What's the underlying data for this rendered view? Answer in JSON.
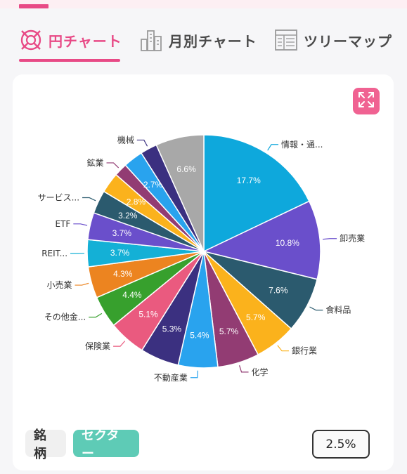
{
  "tabs": [
    {
      "label": "円チャート",
      "icon": "pie-target-icon",
      "active": true
    },
    {
      "label": "月別チャート",
      "icon": "buildings-icon",
      "active": false
    },
    {
      "label": "ツリーマップ",
      "icon": "treemap-grid-icon",
      "active": false
    }
  ],
  "colors": {
    "accent": "#e84a86",
    "toggle_on": "#5ecbb6",
    "expand_button": "#f06292"
  },
  "chart_data": {
    "type": "pie",
    "start": "12 o'clock",
    "direction": "clockwise",
    "slices": [
      {
        "label": "情報・通...",
        "value": 17.7,
        "value_label": "17.7%",
        "color": "#0ea8dc"
      },
      {
        "label": "卸売業",
        "value": 10.8,
        "value_label": "10.8%",
        "color": "#6a4fcb"
      },
      {
        "label": "食料品",
        "value": 7.6,
        "value_label": "7.6%",
        "color": "#2b5a6e"
      },
      {
        "label": "銀行業",
        "value": 5.7,
        "value_label": "5.7%",
        "color": "#fbb21c"
      },
      {
        "label": "化学",
        "value": 5.7,
        "value_label": "5.7%",
        "color": "#923c73"
      },
      {
        "label": "不動産業",
        "value": 5.4,
        "value_label": "5.4%",
        "color": "#29a3ee"
      },
      {
        "label": "",
        "value": 5.3,
        "value_label": "5.3%",
        "color": "#3b3080"
      },
      {
        "label": "保険業",
        "value": 5.1,
        "value_label": "5.1%",
        "color": "#ea5a7f"
      },
      {
        "label": "その他金...",
        "value": 4.4,
        "value_label": "4.4%",
        "color": "#37a02d"
      },
      {
        "label": "小売業",
        "value": 4.3,
        "value_label": "4.3%",
        "color": "#ec8420"
      },
      {
        "label": "REIT...",
        "value": 3.7,
        "value_label": "3.7%",
        "color": "#14b0d6"
      },
      {
        "label": "ETF",
        "value": 3.7,
        "value_label": "3.7%",
        "color": "#6a4fcb"
      },
      {
        "label": "サービス...",
        "value": 3.2,
        "value_label": "3.2%",
        "color": "#2b5a6e"
      },
      {
        "label": "",
        "value": 2.8,
        "value_label": "2.8%",
        "color": "#fbb21c"
      },
      {
        "label": "鉱業",
        "value": 1.8,
        "value_label": "",
        "color": "#923c73"
      },
      {
        "label": "",
        "value": 2.7,
        "value_label": "2.7%",
        "color": "#29a3ee"
      },
      {
        "label": "機械",
        "value": 2.3,
        "value_label": "",
        "color": "#3b3080"
      },
      {
        "label": "",
        "value": 6.6,
        "value_label": "6.6%",
        "color": "#a8a8a8"
      }
    ]
  },
  "controls": {
    "toggle_brand": "銘柄",
    "toggle_sector": "セクター",
    "threshold": "2.5%"
  }
}
